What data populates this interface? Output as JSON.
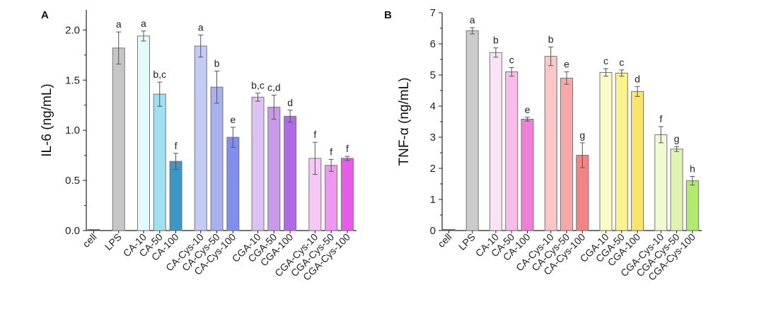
{
  "chart_data": [
    {
      "type": "bar",
      "panel": "A",
      "ylabel": "IL-6 (ng/mL)",
      "ylim": [
        0,
        2.2
      ],
      "yticks": [
        "0.0",
        "0.5",
        "1.0",
        "1.5",
        "2.0"
      ],
      "categories": [
        "cell",
        "LPS",
        "CA-10",
        "CA-50",
        "CA-100",
        "CA-Cys-10",
        "CA-Cys-50",
        "CA-Cys-100",
        "CGA-10",
        "CGA-50",
        "CGA-100",
        "CGA-Cys-10",
        "CGA-Cys-50",
        "CGA-Cys-100"
      ],
      "groups": [
        [
          0
        ],
        [
          1
        ],
        [
          2,
          3,
          4
        ],
        [
          5,
          6,
          7
        ],
        [
          8,
          9,
          10
        ],
        [
          11,
          12,
          13
        ]
      ],
      "values": [
        0.01,
        1.82,
        1.94,
        1.36,
        0.69,
        1.84,
        1.43,
        0.93,
        1.33,
        1.23,
        1.14,
        0.72,
        0.65,
        0.72
      ],
      "errors": [
        0,
        0.16,
        0.05,
        0.12,
        0.08,
        0.11,
        0.16,
        0.1,
        0.04,
        0.12,
        0.06,
        0.16,
        0.06,
        0.02
      ],
      "significance": [
        "",
        "a",
        "a",
        "b,c",
        "f",
        "a",
        "b",
        "e",
        "b,c",
        "c,d",
        "d",
        "f",
        "f",
        "f"
      ],
      "colors": [
        "#1f1f1f",
        "#c6c6c6",
        "#e4fbfb",
        "#9fe0f2",
        "#3a97c6",
        "#c3ccf5",
        "#a6b1ee",
        "#7f8ff0",
        "#dcc3f3",
        "#c89ae8",
        "#b06ae6",
        "#f7c8f7",
        "#ee98f2",
        "#e85ae8"
      ]
    },
    {
      "type": "bar",
      "panel": "B",
      "ylabel": "TNF-α (ng/mL)",
      "ylim": [
        0,
        7
      ],
      "yticks": [
        "0",
        "1",
        "2",
        "3",
        "4",
        "5",
        "6",
        "7"
      ],
      "categories": [
        "cell",
        "LPS",
        "CA-10",
        "CA-50",
        "CA-100",
        "CA-Cys-10",
        "CA-Cys-50",
        "CA-Cys-100",
        "CGA-10",
        "CGA-50",
        "CGA-100",
        "CGA-Cys-10",
        "CGA-Cys-50",
        "CGA-Cys-100"
      ],
      "groups": [
        [
          0
        ],
        [
          1
        ],
        [
          2,
          3,
          4
        ],
        [
          5,
          6,
          7
        ],
        [
          8,
          9,
          10
        ],
        [
          11,
          12,
          13
        ]
      ],
      "values": [
        0.02,
        6.42,
        5.72,
        5.1,
        3.58,
        5.6,
        4.9,
        2.42,
        5.08,
        5.06,
        4.47,
        3.08,
        2.62,
        1.6
      ],
      "errors": [
        0,
        0.1,
        0.15,
        0.14,
        0.06,
        0.3,
        0.2,
        0.4,
        0.12,
        0.1,
        0.16,
        0.26,
        0.08,
        0.14
      ],
      "significance": [
        "",
        "a",
        "b",
        "c",
        "e",
        "b",
        "e",
        "g",
        "c",
        "c",
        "d",
        "f",
        "g",
        "h"
      ],
      "colors": [
        "#1f1f1f",
        "#cccccc",
        "#fbe3f6",
        "#f9bdea",
        "#f07fd6",
        "#fbc6c6",
        "#f7a8a8",
        "#f28484",
        "#fcfcc6",
        "#faf28a",
        "#f9e56a",
        "#f0fbd2",
        "#dff4b0",
        "#b2ea6e"
      ]
    }
  ]
}
